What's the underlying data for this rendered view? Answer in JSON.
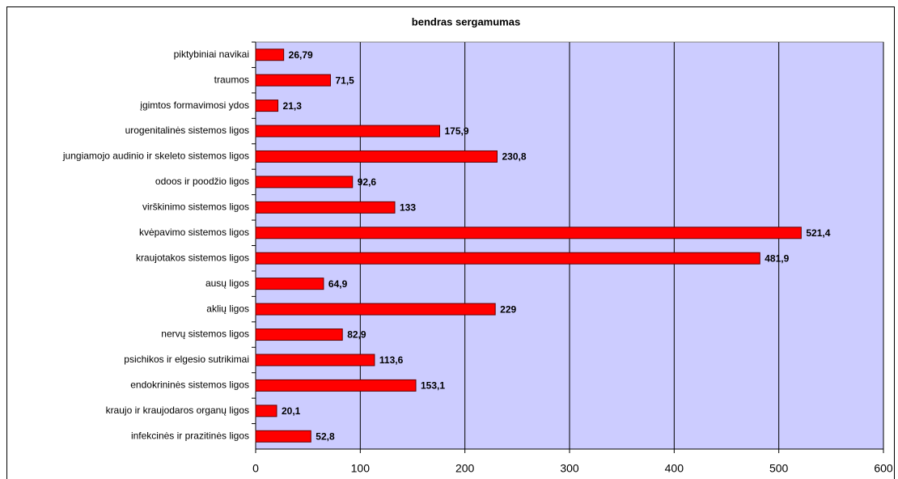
{
  "chart_data": {
    "type": "bar",
    "orientation": "horizontal",
    "title": "bendras sergamumas",
    "categories": [
      "piktybiniai navikai",
      "traumos",
      "įgimtos formavimosi ydos",
      "urogenitalinės sistemos ligos",
      "jungiamojo audinio ir skeleto sistemos ligos",
      "odoos ir poodžio ligos",
      "virškinimo sistemos ligos",
      "kvėpavimo sistemos ligos",
      "kraujotakos sistemos ligos",
      "ausų ligos",
      "aklių ligos",
      "nervų sistemos ligos",
      "psichikos ir elgesio sutrikimai",
      "endokrininės sistemos ligos",
      "kraujo ir kraujodaros organų ligos",
      "infekcinės ir prazitinės ligos"
    ],
    "values": [
      26.79,
      71.5,
      21.3,
      175.9,
      230.8,
      92.6,
      133,
      521.4,
      481.9,
      64.9,
      229,
      82.9,
      113.6,
      153.1,
      20.1,
      52.8
    ],
    "value_labels": [
      "26,79",
      "71,5",
      "21,3",
      "175,9",
      "230,8",
      "92,6",
      "133",
      "521,4",
      "481,9",
      "64,9",
      "229",
      "82,9",
      "113,6",
      "153,1",
      "20,1",
      "52,8"
    ],
    "color": "#ff0000",
    "background": "#ccccff",
    "xlim": [
      0,
      600
    ],
    "xticks": [
      0,
      100,
      200,
      300,
      400,
      500,
      600
    ],
    "grid": true
  }
}
